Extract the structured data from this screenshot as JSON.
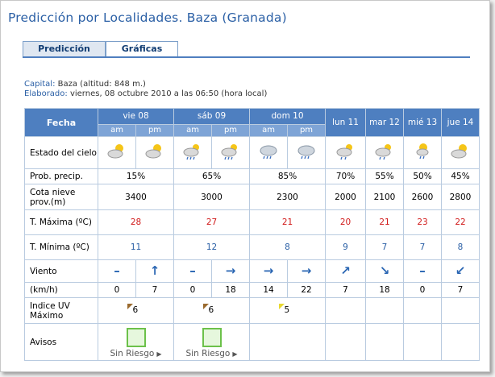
{
  "page": {
    "title": "Predicción por Localidades. Baza (Granada)"
  },
  "tabs": [
    {
      "label": "Predicción",
      "active": true
    },
    {
      "label": "Gráficas",
      "active": false
    }
  ],
  "meta": {
    "capital_label": "Capital:",
    "capital_value": "Baza (altitud: 848 m.)",
    "elaborado_label": "Elaborado:",
    "elaborado_value": "viernes, 08 octubre 2010 a las 06:50 (hora local)"
  },
  "table": {
    "fecha_label": "Fecha",
    "days": [
      "vie 08",
      "sáb 09",
      "dom 10",
      "lun 11",
      "mar 12",
      "mié 13",
      "jue 14"
    ],
    "am": "am",
    "pm": "pm",
    "rows": {
      "estado": "Estado del cielo",
      "precip": "Prob. precip.",
      "cota": "Cota nieve prov.(m)",
      "tmax": "T. Máxima (ºC)",
      "tmin": "T. Mínima (ºC)",
      "viento": "Viento",
      "kmh": "(km/h)",
      "uv": "Indice UV Máximo",
      "avisos": "Avisos"
    },
    "precip": [
      "15%",
      "65%",
      "85%",
      "70%",
      "55%",
      "50%",
      "45%"
    ],
    "cota": [
      "3400",
      "3000",
      "2300",
      "2000",
      "2100",
      "2600",
      "2800"
    ],
    "tmax": [
      "28",
      "27",
      "21",
      "20",
      "21",
      "23",
      "22"
    ],
    "tmin": [
      "11",
      "12",
      "8",
      "9",
      "7",
      "7",
      "8"
    ],
    "wind_arrows": [
      "–",
      "↑",
      "–",
      "→",
      "→",
      "→",
      "↗",
      "↘",
      "–",
      "↙"
    ],
    "wind_speeds": [
      "0",
      "7",
      "0",
      "18",
      "14",
      "22",
      "7",
      "18",
      "0",
      "7"
    ],
    "uv": [
      "6",
      "6",
      "5"
    ],
    "avisos": [
      "Sin Riesgo",
      "Sin Riesgo"
    ],
    "sky_icons": [
      "sun-cloud-icon",
      "sun-cloud-icon",
      "sun-cloud-rain-icon",
      "sun-cloud-rain-icon",
      "cloud-rain-icon",
      "cloud-rain-icon",
      "sun-cloud-rain-icon",
      "sun-cloud-rain-icon",
      "sun-cloud-rain-icon",
      "sun-cloud-icon"
    ]
  },
  "colors": {
    "header": "#4e7fc0",
    "tmax": "#d11a1a",
    "tmin": "#2a5fa5",
    "aviso_green": "#6cc14a"
  }
}
